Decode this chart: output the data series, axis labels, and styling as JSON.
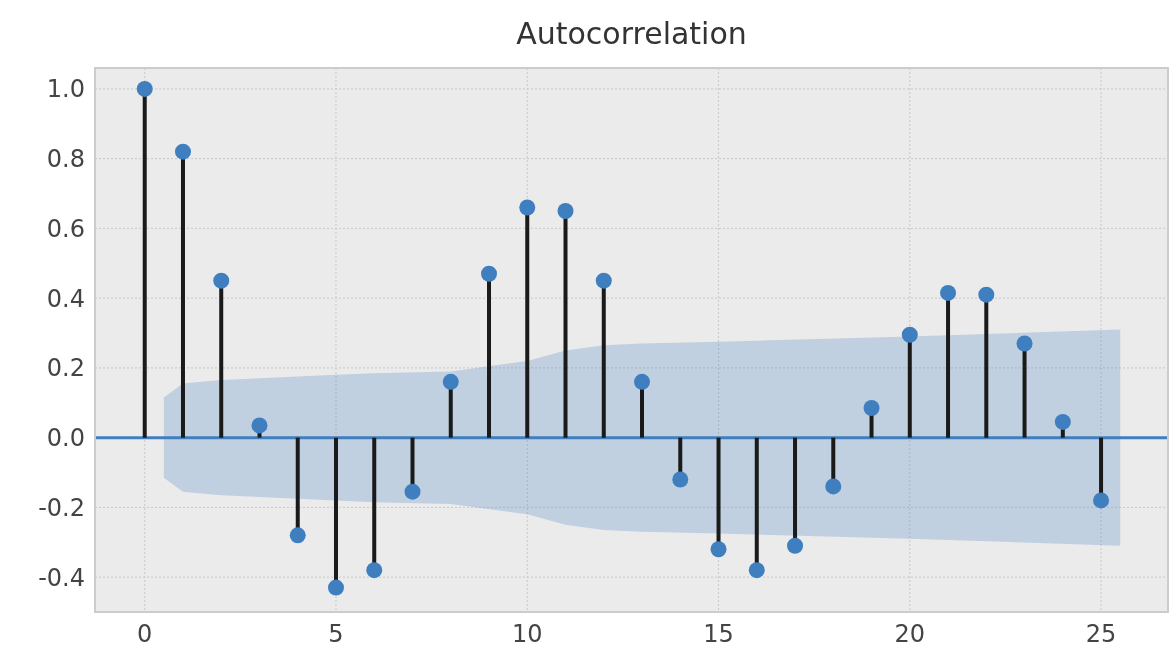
{
  "chart_data": {
    "type": "lollipop",
    "title": "Autocorrelation",
    "x": [
      0,
      1,
      2,
      3,
      4,
      5,
      6,
      7,
      8,
      9,
      10,
      11,
      12,
      13,
      14,
      15,
      16,
      17,
      18,
      19,
      20,
      21,
      22,
      23,
      24,
      25
    ],
    "series": [
      {
        "color": "#3f7fbf",
        "marker": "circle",
        "values": [
          1.0,
          0.82,
          0.45,
          0.035,
          -0.28,
          -0.43,
          -0.38,
          -0.155,
          0.16,
          0.47,
          0.66,
          0.65,
          0.45,
          0.16,
          -0.12,
          -0.32,
          -0.38,
          -0.31,
          -0.14,
          0.085,
          0.295,
          0.415,
          0.41,
          0.27,
          0.045,
          -0.18
        ]
      },
      {
        "type": "line",
        "color": "#3f7fbf",
        "x": [
          -1.3,
          0.5,
          1,
          2,
          3,
          4,
          5,
          6,
          8,
          10,
          11,
          12,
          13,
          15,
          20,
          25.5,
          26.75
        ],
        "values": [
          0,
          0,
          0,
          0,
          0,
          0,
          0,
          0,
          0,
          0,
          0,
          0,
          0,
          0,
          0,
          0,
          0
        ],
        "lower": [
          null,
          -0.115,
          -0.155,
          -0.165,
          -0.17,
          -0.175,
          -0.18,
          -0.185,
          -0.19,
          -0.22,
          -0.25,
          -0.265,
          -0.27,
          -0.275,
          -0.29,
          -0.31,
          null
        ],
        "upper": [
          null,
          0.115,
          0.155,
          0.165,
          0.17,
          0.175,
          0.18,
          0.185,
          0.19,
          0.22,
          0.25,
          0.265,
          0.27,
          0.275,
          0.29,
          0.31,
          null
        ]
      }
    ],
    "xlim": [
      -1.3,
      26.75
    ],
    "xticks": [
      0,
      5,
      10,
      15,
      20,
      25
    ],
    "ylim": [
      -0.5,
      1.06
    ],
    "yticks": [
      -0.4,
      -0.2,
      {
        "value": 0,
        "label": "0.0"
      },
      0.2,
      0.4,
      0.6,
      0.8,
      {
        "value": 1,
        "label": "1.0"
      }
    ],
    "grid": true
  }
}
